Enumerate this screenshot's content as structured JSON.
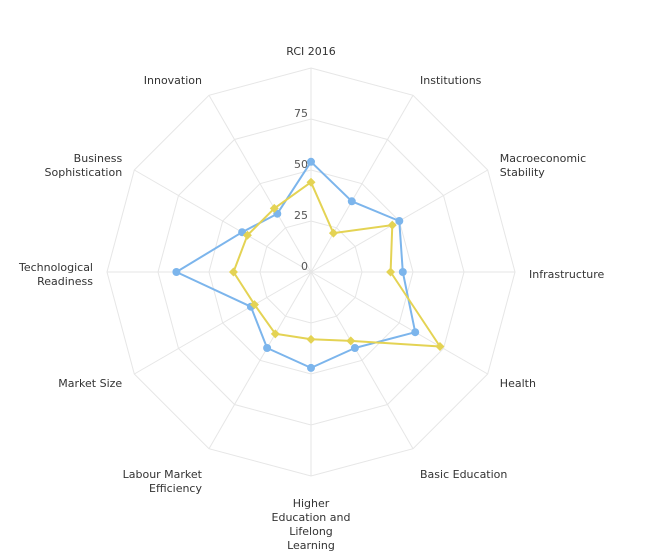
{
  "chart_data": {
    "type": "radar",
    "axes": [
      "RCI 2016",
      "Institutions",
      "Macroeconomic Stability",
      "Infrastructure",
      "Health",
      "Basic Education",
      "Higher Education and Lifelong Learning",
      "Labour Market Efficiency",
      "Market Size",
      "Technological Readiness",
      "Business Sophistication",
      "Innovation"
    ],
    "axis_label_lines": [
      [
        "RCI 2016"
      ],
      [
        "Institutions"
      ],
      [
        "Macroeconomic",
        "Stability"
      ],
      [
        "Infrastructure"
      ],
      [
        "Health"
      ],
      [
        "Basic Education"
      ],
      [
        "Higher",
        "Education and",
        "Lifelong",
        "Learning"
      ],
      [
        "Labour Market",
        "Efficiency"
      ],
      [
        "Market Size"
      ],
      [
        "Technological",
        "Readiness"
      ],
      [
        "Business",
        "Sophistication"
      ],
      [
        "Innovation"
      ]
    ],
    "radial_ticks": [
      0,
      25,
      50,
      75
    ],
    "rmax": 100,
    "grid": true,
    "series": [
      {
        "color": "#7cb5ec",
        "values": [
          54,
          40,
          50,
          45,
          59,
          43,
          47,
          43,
          34,
          66,
          39,
          33
        ]
      },
      {
        "color": "#e4d354",
        "values": [
          44,
          22,
          46,
          39,
          73,
          39,
          33,
          35,
          32,
          38,
          36,
          36
        ]
      }
    ]
  }
}
